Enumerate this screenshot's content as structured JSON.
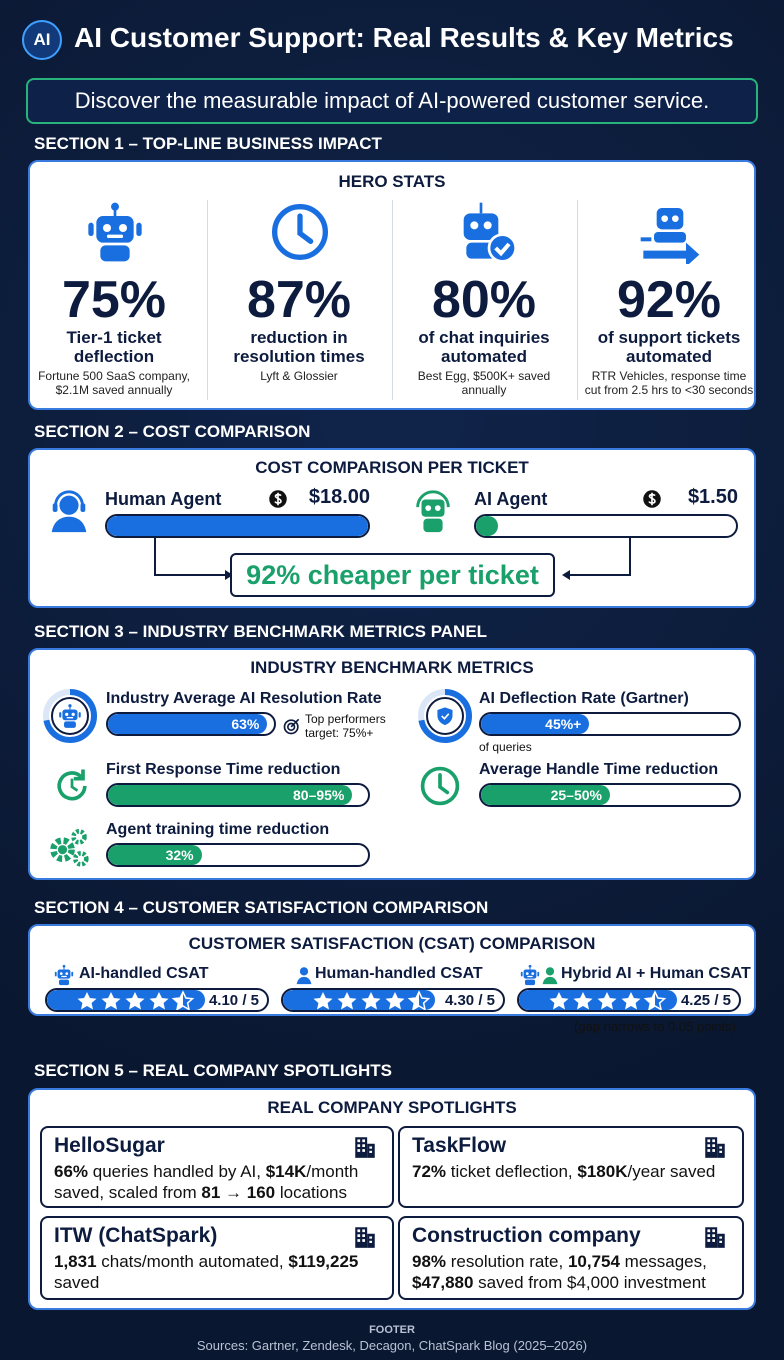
{
  "header": {
    "logo": "AI",
    "title": "AI Customer Support: Real Results & Key Metrics",
    "subtitle": "Discover the measurable impact of AI-powered customer service."
  },
  "sections": [
    {
      "label": "SECTION 1 – TOP-LINE BUSINESS IMPACT",
      "title": "HERO STATS",
      "stats": [
        {
          "value": "75%",
          "label": "Tier-1 ticket deflection",
          "source": "Fortune 500 SaaS company, $2.1M saved annually"
        },
        {
          "value": "87%",
          "label": "reduction in resolution times",
          "source": "Lyft & Glossier"
        },
        {
          "value": "80%",
          "label": "of chat inquiries automated",
          "source": "Best Egg, $500K+ saved annually"
        },
        {
          "value": "92%",
          "label": "of support tickets automated",
          "source": "RTR Vehicles, response time cut from 2.5 hrs to <30 seconds"
        }
      ]
    },
    {
      "label": "SECTION 2 – COST COMPARISON",
      "title": "COST COMPARISON PER TICKET",
      "human": {
        "name": "Human Agent",
        "cost": "$18.00"
      },
      "ai": {
        "name": "AI Agent",
        "cost": "$1.50"
      },
      "result": "92% cheaper per ticket"
    },
    {
      "label": "SECTION 3 – INDUSTRY BENCHMARK METRICS PANEL",
      "title": "INDUSTRY BENCHMARK METRICS",
      "metrics": [
        {
          "name": "Industry Average AI Resolution Rate",
          "value": "63%",
          "note": "Top performers target: 75%+"
        },
        {
          "name": "AI Deflection Rate (Gartner)",
          "value": "45%+",
          "note": "of queries"
        },
        {
          "name": "First Response Time reduction",
          "value": "80–95%"
        },
        {
          "name": "Average Handle Time reduction",
          "value": "25–50%"
        },
        {
          "name": "Agent training time reduction",
          "value": "32%"
        }
      ]
    },
    {
      "label": "SECTION 4 – CUSTOMER SATISFACTION COMPARISON",
      "title": "CUSTOMER SATISFACTION (CSAT) COMPARISON",
      "items": [
        {
          "name": "AI-handled CSAT",
          "score": "4.10 / 5"
        },
        {
          "name": "Human-handled CSAT",
          "score": "4.30 / 5"
        },
        {
          "name": "Hybrid AI + Human CSAT",
          "score": "4.25 / 5"
        }
      ],
      "note": "(gap narrows to 0.05 points)"
    },
    {
      "label": "SECTION 5 – REAL COMPANY SPOTLIGHTS",
      "title": "REAL COMPANY SPOTLIGHTS",
      "companies": [
        {
          "name": "HelloSugar",
          "body": [
            "66%",
            " queries handled by AI, ",
            "$14K",
            "/month saved, scaled from ",
            "81 → 160",
            " locations"
          ]
        },
        {
          "name": "TaskFlow",
          "body": [
            "72%",
            " ticket deflection, ",
            "$180K",
            "/year saved"
          ]
        },
        {
          "name": "ITW (ChatSpark)",
          "body": [
            "1,831",
            " chats/month automated, ",
            "$119,225",
            " saved"
          ]
        },
        {
          "name": "Construction company",
          "body": [
            "98%",
            " resolution rate, ",
            "10,754",
            " messages, ",
            "$47,880",
            " saved from $4,000 investment"
          ]
        }
      ]
    }
  ],
  "footer": {
    "label": "FOOTER",
    "sources": "Sources: Gartner, Zendesk, Decagon, ChatSpark Blog (2025–2026)"
  }
}
